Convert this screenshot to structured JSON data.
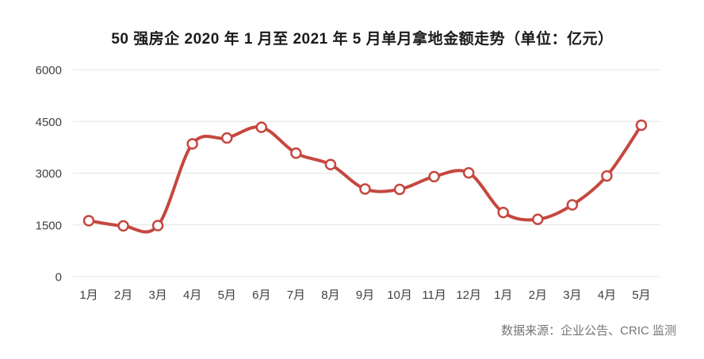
{
  "chart_data": {
    "type": "line",
    "title": "50 强房企 2020 年 1 月至 2021 年 5 月单月拿地金额走势（单位：亿元）",
    "categories": [
      "1月",
      "2月",
      "3月",
      "4月",
      "5月",
      "6月",
      "7月",
      "8月",
      "9月",
      "10月",
      "11月",
      "12月",
      "1月",
      "2月",
      "3月",
      "4月",
      "5月"
    ],
    "series": [
      {
        "name": "单月拿地金额",
        "values": [
          1620,
          1470,
          1480,
          3850,
          4020,
          4330,
          3580,
          3250,
          2540,
          2530,
          2900,
          3010,
          1860,
          1660,
          2080,
          2920,
          4390
        ]
      }
    ],
    "xlabel": "",
    "ylabel": "",
    "ylim": [
      0,
      6000
    ],
    "yticks": [
      0,
      1500,
      3000,
      4500,
      6000
    ],
    "grid": "horizontal",
    "legend_position": "none",
    "smooth": true,
    "line_color": "#c5473f",
    "marker_fill": "#ffffff",
    "grid_color": "#e4e4e4",
    "source": "数据来源：企业公告、CRIC 监测"
  }
}
